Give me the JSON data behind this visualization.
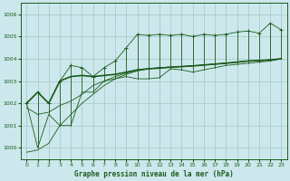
{
  "title": "Graphe pression niveau de la mer (hPa)",
  "bg_color": "#cce8ec",
  "grid_color": "#aacccc",
  "line_color": "#1a5c1a",
  "xlim": [
    -0.5,
    23.5
  ],
  "ylim": [
    999.5,
    1006.5
  ],
  "yticks": [
    1000,
    1001,
    1002,
    1003,
    1004,
    1005,
    1006
  ],
  "xticks": [
    0,
    1,
    2,
    3,
    4,
    5,
    6,
    7,
    8,
    9,
    10,
    11,
    12,
    13,
    14,
    15,
    16,
    17,
    18,
    19,
    20,
    21,
    22,
    23
  ],
  "x": [
    0,
    1,
    2,
    3,
    4,
    5,
    6,
    7,
    8,
    9,
    10,
    11,
    12,
    13,
    14,
    15,
    16,
    17,
    18,
    19,
    20,
    21,
    22,
    23
  ],
  "y_spiky": [
    1002.0,
    1002.5,
    1002.0,
    1003.0,
    1003.7,
    1003.6,
    1003.2,
    1003.6,
    1003.9,
    1004.5,
    1005.1,
    1005.05,
    1005.1,
    1005.05,
    1005.1,
    1005.0,
    1005.1,
    1005.05,
    1005.1,
    1005.2,
    1005.25,
    1005.15,
    1005.6,
    1005.3
  ],
  "y_low": [
    1002.0,
    1000.0,
    1001.5,
    1001.0,
    1001.0,
    1002.5,
    1002.5,
    1003.0,
    1003.1,
    1003.2,
    1003.1,
    1003.1,
    1003.15,
    1003.55,
    1003.5,
    1003.4,
    1003.5,
    1003.6,
    1003.7,
    1003.75,
    1003.8,
    1003.85,
    1003.9,
    1004.0
  ],
  "y_smooth1": [
    1002.0,
    1002.5,
    1002.0,
    1003.0,
    1003.2,
    1003.25,
    1003.2,
    1003.25,
    1003.3,
    1003.4,
    1003.5,
    1003.55,
    1003.58,
    1003.62,
    1003.65,
    1003.68,
    1003.72,
    1003.76,
    1003.8,
    1003.85,
    1003.9,
    1003.92,
    1003.95,
    1004.0
  ],
  "y_trend_bottom": [
    999.8,
    999.9,
    1000.2,
    1001.0,
    1001.5,
    1002.0,
    1002.4,
    1002.8,
    1003.1,
    1003.3,
    1003.45,
    1003.55,
    1003.6,
    1003.62,
    1003.65,
    1003.68,
    1003.72,
    1003.76,
    1003.8,
    1003.85,
    1003.9,
    1003.92,
    1003.95,
    1004.0
  ],
  "y_trend_top": [
    1001.8,
    1001.5,
    1001.6,
    1001.9,
    1002.1,
    1002.4,
    1002.8,
    1003.0,
    1003.2,
    1003.35,
    1003.5,
    1003.55,
    1003.6,
    1003.63,
    1003.65,
    1003.68,
    1003.72,
    1003.76,
    1003.8,
    1003.85,
    1003.9,
    1003.92,
    1003.95,
    1004.0
  ]
}
